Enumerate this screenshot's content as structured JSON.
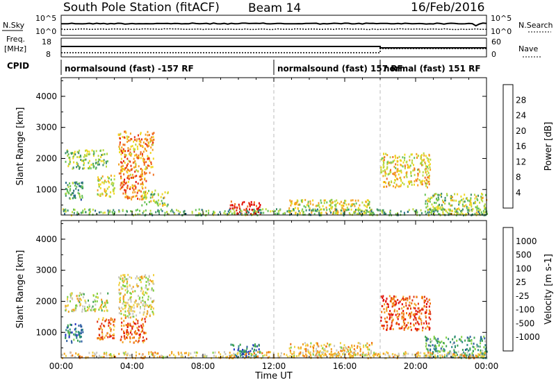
{
  "header": {
    "station": "South Pole Station (fitACF)",
    "beam": "Beam 14",
    "date": "16/Feb/2016"
  },
  "top_panels": {
    "nsky_label": "N.Sky",
    "nsearch_label": "N.Search",
    "freq_label_line1": "Freq.",
    "freq_label_line2": "[MHz]",
    "nave_label": "Nave",
    "cpid_label": "CPID",
    "noise_left_ticks": [
      "10^5",
      "10^0"
    ],
    "noise_right_ticks": [
      "10^5",
      "10^0"
    ],
    "freq_left_ticks": [
      "18",
      "8"
    ],
    "nave_right_ticks": [
      "60",
      "0"
    ],
    "cpid_segments": [
      {
        "start_hour": 0,
        "end_hour": 12,
        "text": "normalsound (fast) -157 RF"
      },
      {
        "start_hour": 12,
        "end_hour": 18,
        "text": "normalsound (fast) 157 RF"
      },
      {
        "start_hour": 18,
        "end_hour": 24,
        "text": "normal (fast) 151 RF"
      }
    ]
  },
  "chart_data": [
    {
      "type": "heatmap",
      "name": "power",
      "ylabel": "Slant Range [km]",
      "xlim": [
        0,
        24
      ],
      "ylim": [
        180,
        4600
      ],
      "yticks": [
        1000,
        2000,
        3000,
        4000
      ],
      "colorbar": {
        "label": "Power [dB]",
        "ticks": [
          "28",
          "24",
          "20",
          "16",
          "12",
          "8",
          "4"
        ],
        "colors": [
          "#1010ff",
          "#1a3f9e",
          "#2a6e8a",
          "#3c8f6a",
          "#66c254",
          "#b8d840",
          "#f0d820",
          "#f4a020",
          "#f07020",
          "#e53010",
          "#e00000"
        ]
      },
      "scatter_regions": [
        {
          "t0": 0.2,
          "t1": 2.6,
          "r0": 1700,
          "r1": 2300,
          "level": 0.45
        },
        {
          "t0": 0.2,
          "t1": 1.2,
          "r0": 700,
          "r1": 1300,
          "level": 0.35
        },
        {
          "t0": 2.0,
          "t1": 3.0,
          "r0": 800,
          "r1": 1500,
          "level": 0.55
        },
        {
          "t0": 3.2,
          "t1": 5.2,
          "r0": 1500,
          "r1": 2900,
          "level": 0.7
        },
        {
          "t0": 3.3,
          "t1": 4.8,
          "r0": 700,
          "r1": 1500,
          "level": 0.75
        },
        {
          "t0": 4.5,
          "t1": 6.0,
          "r0": 500,
          "r1": 1000,
          "level": 0.5
        },
        {
          "t0": 9.5,
          "t1": 11.2,
          "r0": 220,
          "r1": 650,
          "level": 0.95
        },
        {
          "t0": 12.8,
          "t1": 17.5,
          "r0": 220,
          "r1": 700,
          "level": 0.55
        },
        {
          "t0": 18.0,
          "t1": 20.8,
          "r0": 1100,
          "r1": 2200,
          "level": 0.6
        },
        {
          "t0": 20.5,
          "t1": 24.0,
          "r0": 200,
          "r1": 900,
          "level": 0.5
        },
        {
          "t0": 0.0,
          "t1": 24.0,
          "r0": 200,
          "r1": 400,
          "level": 0.4
        }
      ]
    },
    {
      "type": "heatmap",
      "name": "velocity",
      "ylabel": "Slant Range [km]",
      "xlabel": "Time UT",
      "xlim": [
        0,
        24
      ],
      "ylim": [
        180,
        4600
      ],
      "yticks": [
        1000,
        2000,
        3000,
        4000
      ],
      "xticks": [
        "00:00",
        "04:00",
        "08:00",
        "12:00",
        "16:00",
        "20:00",
        "00:00"
      ],
      "colorbar": {
        "label": "Velocity [m s-1]",
        "ticks": [
          "1000",
          "500",
          "100",
          "25",
          "-25",
          "-100",
          "-500",
          "-1000"
        ],
        "colors": [
          "#2030c0",
          "#2a5aa0",
          "#2a8a80",
          "#3aa050",
          "#80d040",
          "#c8c8c0",
          "#f0d040",
          "#f0a020",
          "#f07010",
          "#e03010",
          "#e00000"
        ]
      },
      "scatter_regions": [
        {
          "t0": 0.2,
          "t1": 2.6,
          "r0": 1700,
          "r1": 2300,
          "level": 0.5
        },
        {
          "t0": 0.2,
          "t1": 1.2,
          "r0": 700,
          "r1": 1300,
          "level": 0.2
        },
        {
          "t0": 2.0,
          "t1": 3.0,
          "r0": 800,
          "r1": 1500,
          "level": 0.75
        },
        {
          "t0": 3.2,
          "t1": 5.2,
          "r0": 1500,
          "r1": 2900,
          "level": 0.55
        },
        {
          "t0": 3.3,
          "t1": 4.8,
          "r0": 700,
          "r1": 1500,
          "level": 0.8
        },
        {
          "t0": 9.5,
          "t1": 11.2,
          "r0": 220,
          "r1": 650,
          "level": 0.2
        },
        {
          "t0": 12.8,
          "t1": 17.5,
          "r0": 220,
          "r1": 700,
          "level": 0.6
        },
        {
          "t0": 18.0,
          "t1": 20.8,
          "r0": 1100,
          "r1": 2200,
          "level": 0.82
        },
        {
          "t0": 20.5,
          "t1": 24.0,
          "r0": 200,
          "r1": 900,
          "level": 0.3
        },
        {
          "t0": 0.0,
          "t1": 24.0,
          "r0": 200,
          "r1": 400,
          "level": 0.6
        }
      ]
    }
  ]
}
